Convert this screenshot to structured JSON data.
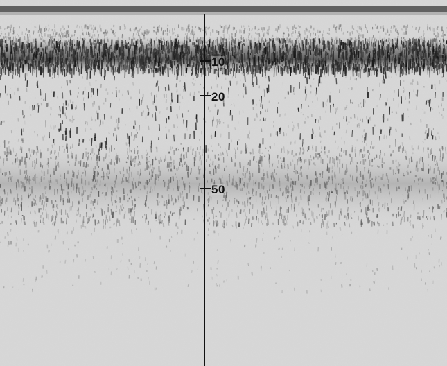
{
  "depth_scale": {
    "labels": [
      "10",
      "20",
      "50"
    ]
  },
  "colors": {
    "paper": "#d9d9d9",
    "ink": "#111111",
    "dark_band": "#2a2a2a",
    "mid_band": "#6a6a6a"
  }
}
